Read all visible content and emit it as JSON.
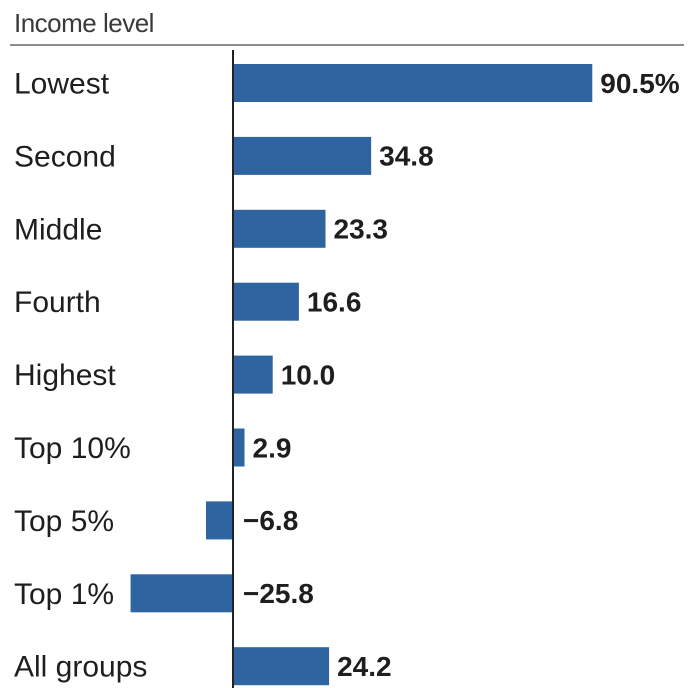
{
  "chart_data": {
    "type": "bar",
    "orientation": "horizontal",
    "header": "Income level",
    "categories": [
      "Lowest",
      "Second",
      "Middle",
      "Fourth",
      "Highest",
      "Top 10%",
      "Top 5%",
      "Top 1%",
      "All groups"
    ],
    "values": [
      90.5,
      34.8,
      23.3,
      16.6,
      10.0,
      2.9,
      -6.8,
      -25.8,
      24.2
    ],
    "value_labels": [
      "90.5%",
      "34.8",
      "23.3",
      "16.6",
      "10.0",
      "2.9",
      "−6.8",
      "−25.8",
      "24.2"
    ],
    "bar_color": "#2e64a0",
    "axis_color": "#222222",
    "grid": false,
    "legend": "none"
  }
}
